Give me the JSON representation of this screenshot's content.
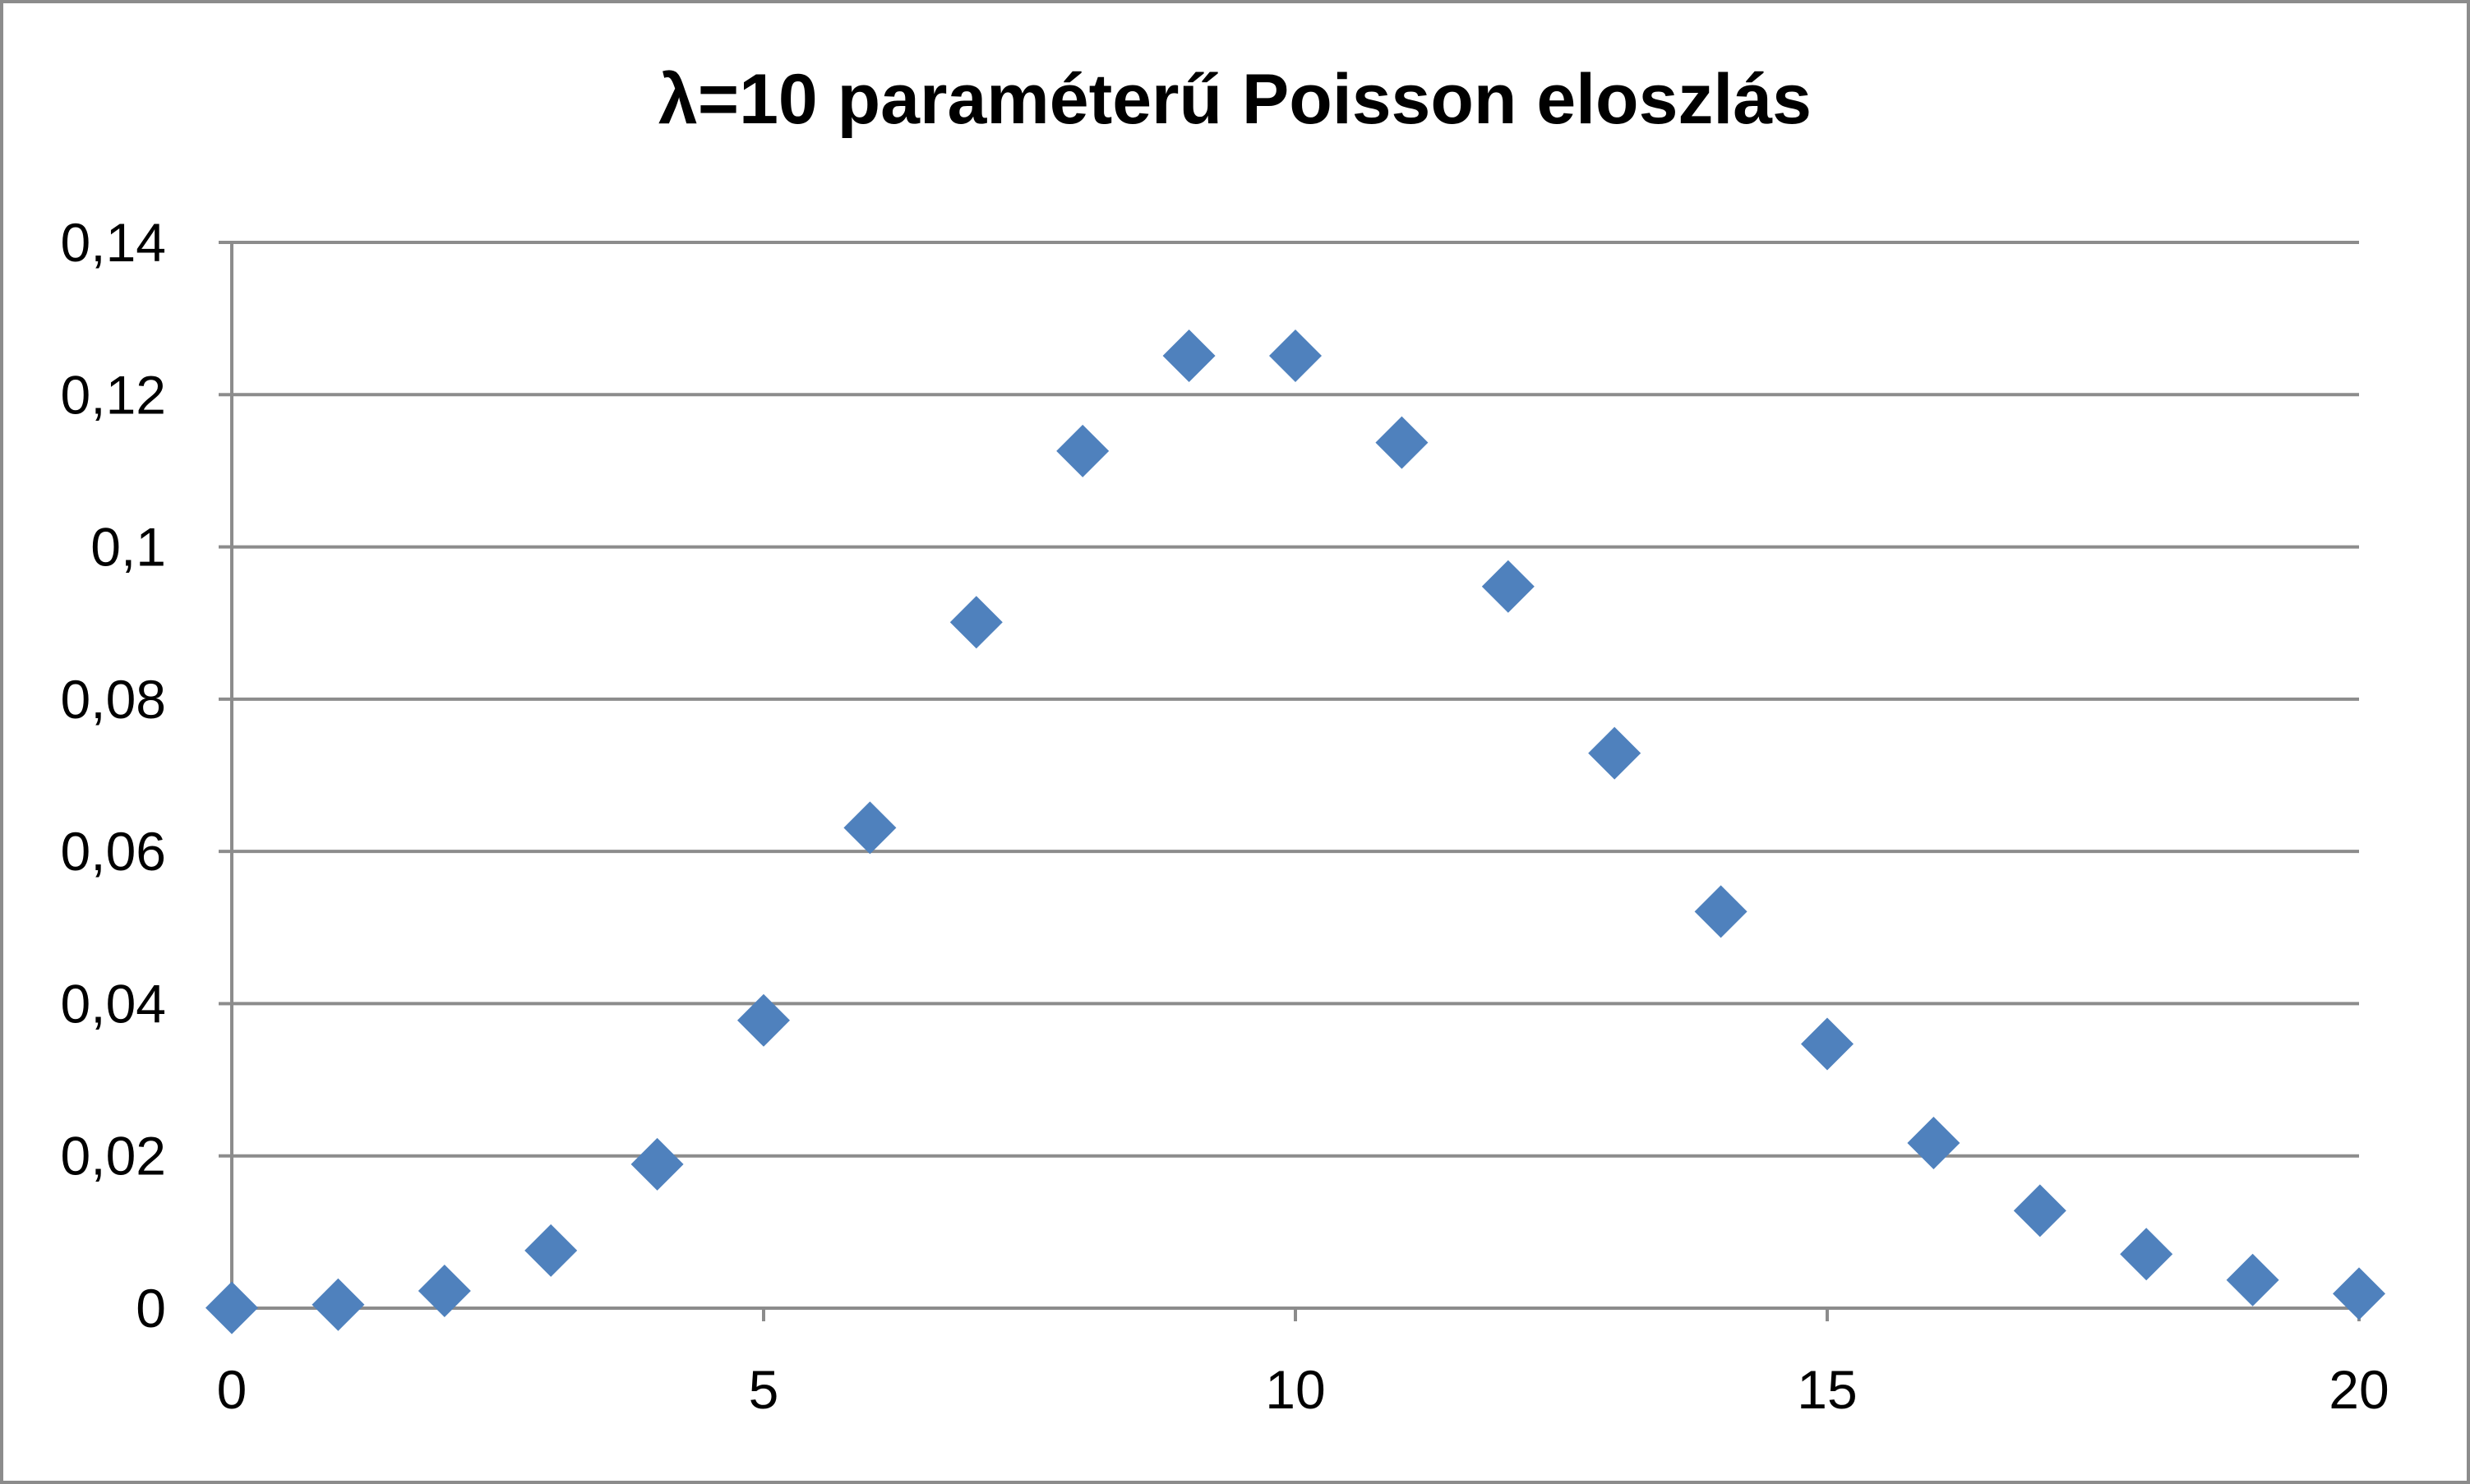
{
  "chart_data": {
    "type": "scatter",
    "title": "λ=10 paraméterű Poisson eloszlás",
    "xlabel": "",
    "ylabel": "",
    "xlim": [
      0,
      20
    ],
    "ylim": [
      0,
      0.14
    ],
    "x_ticks": [
      0,
      5,
      10,
      15,
      20
    ],
    "x_tick_labels": [
      "0",
      "5",
      "10",
      "15",
      "20"
    ],
    "y_ticks": [
      0,
      0.02,
      0.04,
      0.06,
      0.08,
      0.1,
      0.12,
      0.14
    ],
    "y_tick_labels": [
      "0",
      "0,02",
      "0,04",
      "0,06",
      "0,08",
      "0,1",
      "0,12",
      "0,14"
    ],
    "grid": "horizontal",
    "legend": "none",
    "marker": "diamond",
    "marker_color": "#4f81bd",
    "series": [
      {
        "x": [
          0,
          1,
          2,
          3,
          4,
          5,
          6,
          7,
          8,
          9,
          10,
          11,
          12,
          13,
          14,
          15,
          16,
          17,
          18,
          19,
          20
        ],
        "y": [
          4.54e-05,
          0.000454,
          0.00227,
          0.00757,
          0.0189,
          0.0378,
          0.0631,
          0.0901,
          0.1126,
          0.1251,
          0.1251,
          0.1137,
          0.0948,
          0.0729,
          0.0521,
          0.0347,
          0.0217,
          0.0128,
          0.0071,
          0.0037,
          0.0019
        ]
      }
    ]
  }
}
